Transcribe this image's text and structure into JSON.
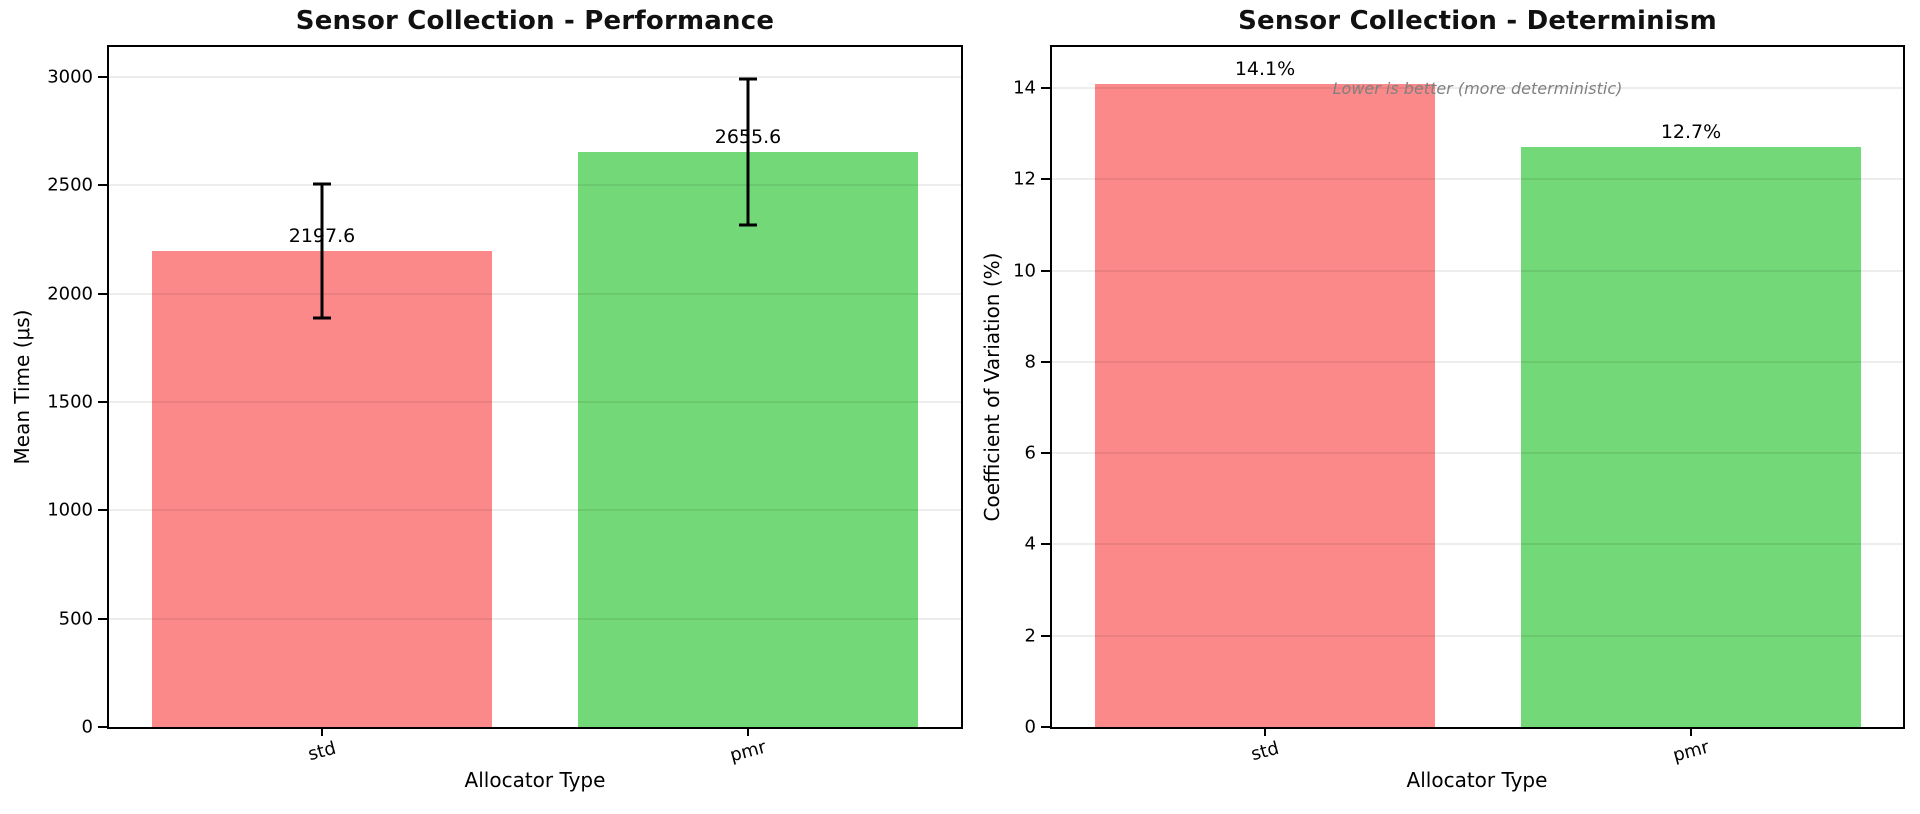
{
  "figure": {
    "background": "#ffffff"
  },
  "chart_data": [
    {
      "type": "bar",
      "title": "Sensor Collection - Performance",
      "xlabel": "Allocator Type",
      "ylabel": "Mean Time (μs)",
      "categories": [
        "std",
        "pmr"
      ],
      "values": [
        2197.6,
        2655.6
      ],
      "bar_labels": [
        "2197.6",
        "2655.6"
      ],
      "errors": [
        310,
        337
      ],
      "bar_colors": [
        "#fb8989",
        "#73d877"
      ],
      "yticks": [
        0,
        500,
        1000,
        1500,
        2000,
        2500,
        3000
      ],
      "ylim": [
        0,
        3138
      ],
      "grid": true,
      "legend": "none",
      "tick_rotation_deg": 15
    },
    {
      "type": "bar",
      "title": "Sensor Collection - Determinism",
      "xlabel": "Allocator Type",
      "ylabel": "Coefficient of Variation (%)",
      "categories": [
        "std",
        "pmr"
      ],
      "values": [
        14.1,
        12.7
      ],
      "bar_labels": [
        "14.1%",
        "12.7%"
      ],
      "errors": null,
      "bar_colors": [
        "#fb8989",
        "#73d877"
      ],
      "yticks": [
        0,
        2,
        4,
        6,
        8,
        10,
        12,
        14
      ],
      "ylim": [
        0,
        14.9
      ],
      "grid": true,
      "legend": "none",
      "tick_rotation_deg": 15,
      "annotation": {
        "text": "Lower is better (more deterministic)",
        "color": "#808080",
        "style": "italic"
      }
    }
  ]
}
